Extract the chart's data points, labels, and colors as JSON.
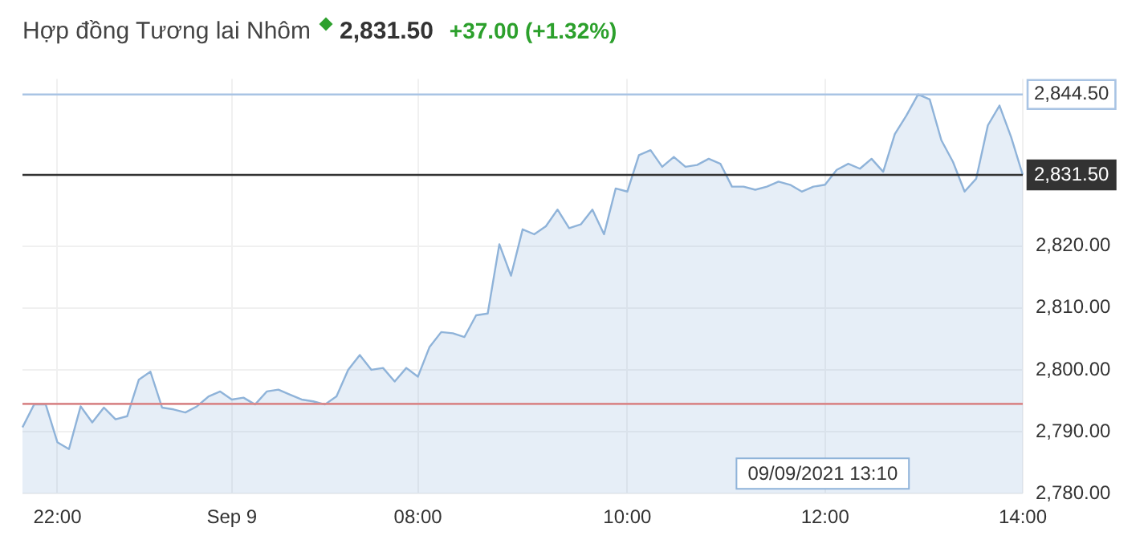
{
  "chart_data": {
    "type": "area",
    "title": "Hợp đồng Tương lai Nhôm",
    "annotations": [
      "2,831.50",
      "+37.00 (+1.32%)",
      "09/09/2021 13:10"
    ],
    "categories": [
      null,
      null,
      null,
      "22:00",
      null,
      null,
      null,
      null,
      null,
      null,
      null,
      null,
      null,
      null,
      null,
      null,
      null,
      null,
      "Sep 9",
      null,
      null,
      null,
      null,
      null,
      null,
      null,
      null,
      null,
      null,
      null,
      null,
      null,
      null,
      null,
      "08:00",
      null,
      null,
      null,
      null,
      null,
      null,
      null,
      null,
      null,
      null,
      null,
      null,
      null,
      null,
      null,
      null,
      null,
      "10:00",
      null,
      null,
      null,
      null,
      null,
      null,
      null,
      null,
      null,
      null,
      null,
      null,
      null,
      null,
      null,
      null,
      "12:00",
      null,
      null,
      null,
      null,
      null,
      null,
      null,
      null,
      null,
      null,
      null,
      null,
      null,
      null,
      null,
      null,
      "14:00"
    ],
    "series": [
      {
        "color": "#8fb3d9",
        "values": [
          2790.7,
          2794.4,
          2794.4,
          2788.3,
          2787.2,
          2794.1,
          2791.5,
          2793.9,
          2792.0,
          2792.5,
          2798.4,
          2799.7,
          2793.9,
          2793.6,
          2793.1,
          2794.1,
          2795.7,
          2796.5,
          2795.2,
          2795.5,
          2794.4,
          2796.5,
          2796.8,
          2796.0,
          2795.2,
          2794.9,
          2794.4,
          2795.7,
          2800.0,
          2802.4,
          2800.0,
          2800.3,
          2798.1,
          2800.3,
          2798.9,
          2803.7,
          2806.1,
          2805.9,
          2805.3,
          2808.8,
          2809.1,
          2820.3,
          2815.2,
          2822.7,
          2821.9,
          2823.2,
          2825.9,
          2822.9,
          2823.5,
          2825.9,
          2821.9,
          2829.3,
          2828.8,
          2834.7,
          2835.5,
          2832.8,
          2834.4,
          2832.8,
          2833.1,
          2834.1,
          2833.3,
          2829.6,
          2829.6,
          2829.1,
          2829.6,
          2830.4,
          2829.9,
          2828.8,
          2829.6,
          2829.9,
          2832.3,
          2833.3,
          2832.5,
          2834.1,
          2832.0,
          2838.1,
          2841.1,
          2844.5,
          2843.7,
          2837.1,
          2833.6,
          2828.8,
          2830.9,
          2839.5,
          2842.7,
          2837.6,
          2831.5
        ]
      }
    ],
    "ylim": [
      2780,
      2847
    ],
    "yticks": [
      {
        "value": 2780,
        "label": "2,780.00"
      },
      {
        "value": 2790,
        "label": "2,790.00"
      },
      {
        "value": 2800,
        "label": "2,800.00"
      },
      {
        "value": 2810,
        "label": "2,810.00"
      },
      {
        "value": 2820,
        "label": "2,820.00"
      }
    ],
    "ref_lines": [
      {
        "axis": "y",
        "value": 2844.5,
        "label": "2,844.50",
        "color": "#a9c4e4"
      },
      {
        "axis": "y",
        "value": 2831.5,
        "label": "2,831.50",
        "color": "#333333"
      },
      {
        "axis": "y",
        "value": 2794.5,
        "color": "#d9888a"
      }
    ],
    "grid": true,
    "legend": false,
    "marker": "none",
    "line_style": "solid"
  }
}
